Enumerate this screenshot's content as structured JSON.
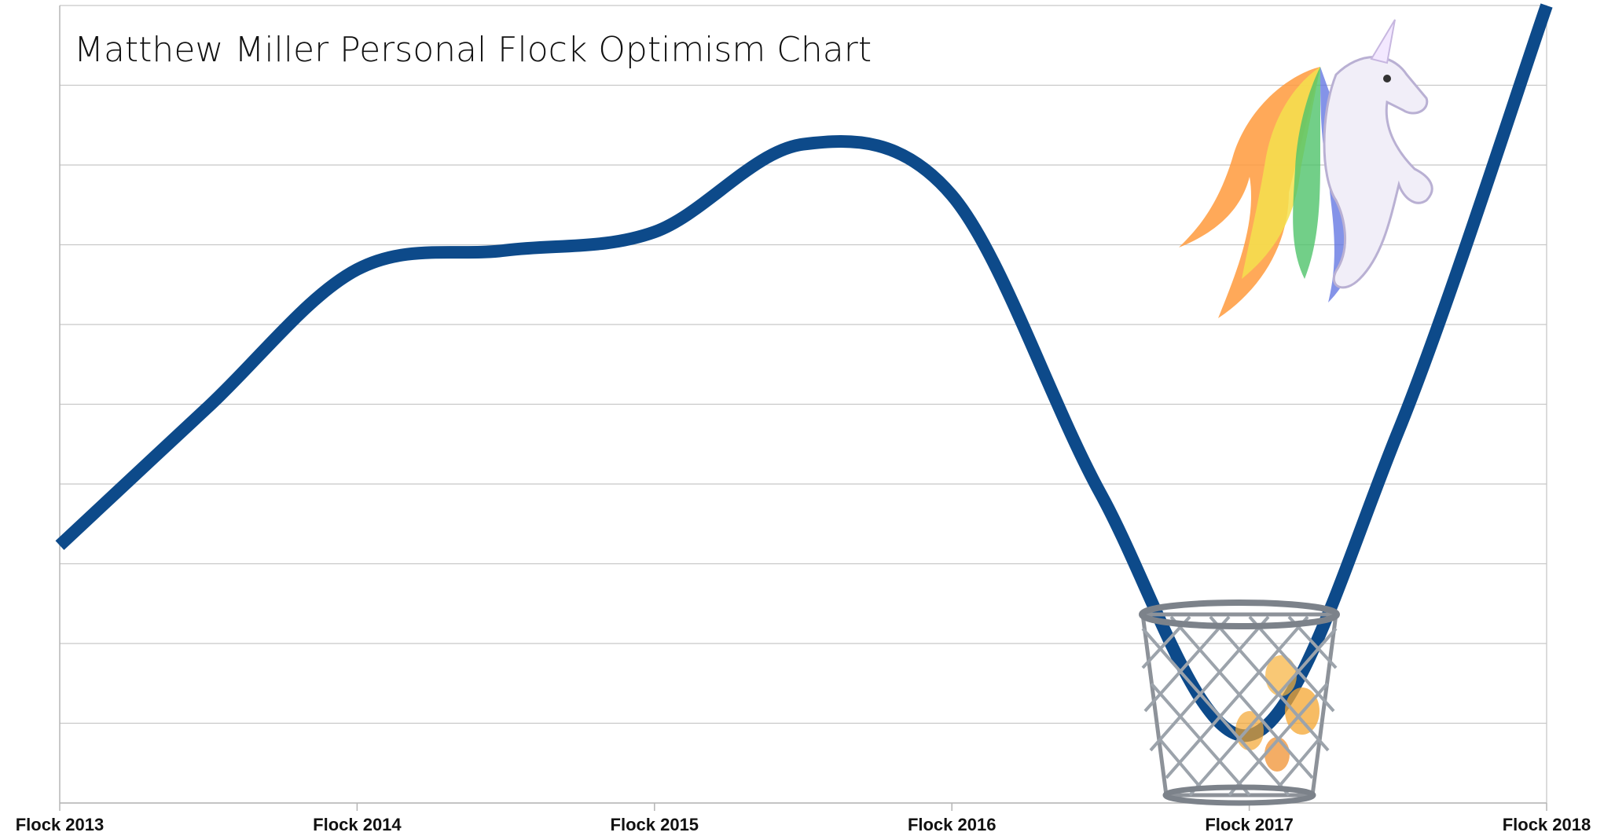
{
  "chart_data": {
    "type": "line",
    "title": "Matthew Miller Personal Flock Optimism Chart",
    "x": [
      2013,
      2013.5,
      2014,
      2014.5,
      2015,
      2015.5,
      2016,
      2016.5,
      2017,
      2017.5,
      2018
    ],
    "values": [
      3.23,
      4.97,
      6.69,
      6.93,
      7.16,
      8.26,
      7.62,
      3.88,
      0.85,
      4.65,
      10
    ],
    "color": "#0d4a8a",
    "xlim": [
      2013,
      2018
    ],
    "xticks": [
      {
        "value": 2013,
        "label": "Flock 2013"
      },
      {
        "value": 2014,
        "label": "Flock 2014"
      },
      {
        "value": 2015,
        "label": "Flock 2015"
      },
      {
        "value": 2016,
        "label": "Flock 2016"
      },
      {
        "value": 2017,
        "label": "Flock 2017"
      },
      {
        "value": 2018,
        "label": "Flock 2018"
      }
    ],
    "ylim": [
      0,
      10
    ],
    "yticks": [
      0,
      1,
      2,
      3,
      4,
      5,
      6,
      7,
      8,
      9,
      10
    ],
    "grid": true
  }
}
